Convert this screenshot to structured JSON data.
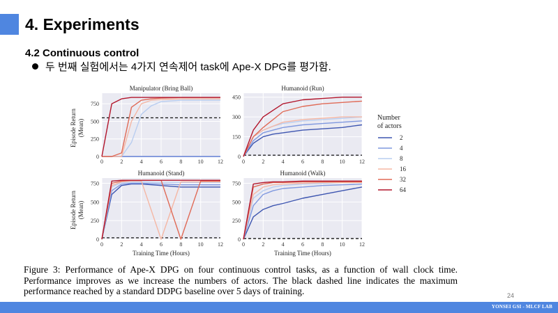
{
  "slide": {
    "title": "4. Experiments",
    "section": "4.2 Continuous control",
    "bullet": "두 번째 실험에서는 4가지 연속제어 task에 Ape-X DPG를 평가함.",
    "page_number": "24",
    "footer": "YONSEI GSI - MLCF LAB"
  },
  "figure": {
    "caption": "Figure 3:  Performance of Ape-X DPG on four continuous control tasks, as a function of wall clock time. Performance improves as we increase the numbers of actors.  The black dashed line indicates the maximum performance reached by a standard DDPG baseline over 5 days of training.",
    "legend_title_line1": "Number",
    "legend_title_line2": "of actors",
    "ylabel_line1": "Episode Return",
    "ylabel_line2": "(Mean)",
    "xlabel": "Training Time (Hours)",
    "series_colors": {
      "2": "#3d55b0",
      "4": "#7f98df",
      "8": "#b8cdf0",
      "16": "#f5b7a4",
      "32": "#e06a56",
      "64": "#b2152b"
    }
  },
  "chart_data": [
    {
      "type": "line",
      "title": "Manipulator (Bring Ball)",
      "xlabel": "",
      "ylabel": "Episode Return (Mean)",
      "x": [
        0,
        1,
        2,
        3,
        4,
        5,
        6,
        8,
        10,
        12
      ],
      "xticks": [
        "0",
        "2",
        "4",
        "6",
        "8",
        "10",
        "12"
      ],
      "yticks": [
        "0",
        "250",
        "500",
        "750"
      ],
      "xlim": [
        0,
        12
      ],
      "ylim": [
        0,
        900
      ],
      "baseline": 550,
      "series": [
        {
          "name": "2",
          "values": [
            0,
            0,
            0,
            0,
            0,
            0,
            0,
            0,
            0,
            0
          ]
        },
        {
          "name": "4",
          "values": [
            0,
            0,
            0,
            0,
            0,
            0,
            0,
            0,
            0,
            0
          ]
        },
        {
          "name": "8",
          "values": [
            0,
            0,
            0,
            200,
            600,
            720,
            780,
            800,
            800,
            800
          ]
        },
        {
          "name": "16",
          "values": [
            0,
            0,
            0,
            500,
            750,
            800,
            810,
            820,
            820,
            820
          ]
        },
        {
          "name": "32",
          "values": [
            0,
            0,
            50,
            700,
            800,
            820,
            830,
            840,
            840,
            840
          ]
        },
        {
          "name": "64",
          "values": [
            0,
            750,
            820,
            840,
            840,
            840,
            840,
            840,
            840,
            840
          ]
        }
      ]
    },
    {
      "type": "line",
      "title": "Humanoid (Run)",
      "xlabel": "",
      "ylabel": "",
      "x": [
        0,
        1,
        2,
        3,
        4,
        6,
        8,
        10,
        12
      ],
      "xticks": [
        "0",
        "2",
        "4",
        "6",
        "8",
        "10",
        "12"
      ],
      "yticks": [
        "0",
        "150",
        "300",
        "450"
      ],
      "xlim": [
        0,
        12
      ],
      "ylim": [
        0,
        480
      ],
      "baseline": 10,
      "series": [
        {
          "name": "2",
          "values": [
            0,
            100,
            150,
            170,
            180,
            200,
            210,
            220,
            240
          ]
        },
        {
          "name": "4",
          "values": [
            0,
            120,
            180,
            200,
            220,
            240,
            250,
            260,
            270
          ]
        },
        {
          "name": "8",
          "values": [
            0,
            150,
            200,
            230,
            250,
            270,
            280,
            290,
            300
          ]
        },
        {
          "name": "16",
          "values": [
            0,
            150,
            200,
            230,
            260,
            280,
            290,
            300,
            300
          ]
        },
        {
          "name": "32",
          "values": [
            0,
            150,
            220,
            280,
            340,
            380,
            400,
            410,
            420
          ]
        },
        {
          "name": "64",
          "values": [
            0,
            200,
            300,
            350,
            400,
            430,
            440,
            450,
            450
          ]
        }
      ]
    },
    {
      "type": "line",
      "title": "Humanoid (Stand)",
      "xlabel": "Training Time (Hours)",
      "ylabel": "Episode Return (Mean)",
      "x": [
        0,
        1,
        2,
        3,
        4,
        6,
        8,
        10,
        12
      ],
      "xticks": [
        "0",
        "2",
        "4",
        "6",
        "8",
        "10",
        "12"
      ],
      "yticks": [
        "0",
        "250",
        "500",
        "750"
      ],
      "xlim": [
        0,
        12
      ],
      "ylim": [
        0,
        820
      ],
      "baseline": 20,
      "series": [
        {
          "name": "2",
          "values": [
            0,
            600,
            720,
            740,
            740,
            720,
            700,
            700,
            700
          ]
        },
        {
          "name": "4",
          "values": [
            0,
            650,
            740,
            750,
            750,
            740,
            730,
            730,
            730
          ]
        },
        {
          "name": "8",
          "values": [
            0,
            700,
            760,
            770,
            770,
            760,
            760,
            760,
            760
          ]
        },
        {
          "name": "16",
          "values": [
            0,
            720,
            770,
            780,
            780,
            0,
            770,
            770,
            770
          ]
        },
        {
          "name": "32",
          "values": [
            0,
            750,
            780,
            790,
            790,
            790,
            0,
            780,
            780
          ]
        },
        {
          "name": "64",
          "values": [
            0,
            780,
            790,
            790,
            790,
            790,
            790,
            790,
            790
          ]
        }
      ]
    },
    {
      "type": "line",
      "title": "Humanoid (Walk)",
      "xlabel": "Training Time (Hours)",
      "ylabel": "",
      "x": [
        0,
        1,
        2,
        3,
        4,
        6,
        8,
        10,
        12
      ],
      "xticks": [
        "0",
        "2",
        "4",
        "6",
        "8",
        "10",
        "12"
      ],
      "yticks": [
        "0",
        "250",
        "500",
        "750"
      ],
      "xlim": [
        0,
        12
      ],
      "ylim": [
        0,
        820
      ],
      "baseline": 10,
      "series": [
        {
          "name": "2",
          "values": [
            0,
            300,
            400,
            450,
            480,
            550,
            600,
            650,
            700
          ]
        },
        {
          "name": "4",
          "values": [
            0,
            450,
            600,
            650,
            680,
            700,
            720,
            730,
            740
          ]
        },
        {
          "name": "8",
          "values": [
            0,
            550,
            650,
            700,
            720,
            740,
            750,
            760,
            760
          ]
        },
        {
          "name": "16",
          "values": [
            0,
            600,
            700,
            730,
            740,
            750,
            760,
            760,
            760
          ]
        },
        {
          "name": "32",
          "values": [
            0,
            700,
            740,
            760,
            760,
            770,
            770,
            770,
            770
          ]
        },
        {
          "name": "64",
          "values": [
            0,
            740,
            760,
            770,
            770,
            780,
            780,
            780,
            780
          ]
        }
      ]
    }
  ]
}
